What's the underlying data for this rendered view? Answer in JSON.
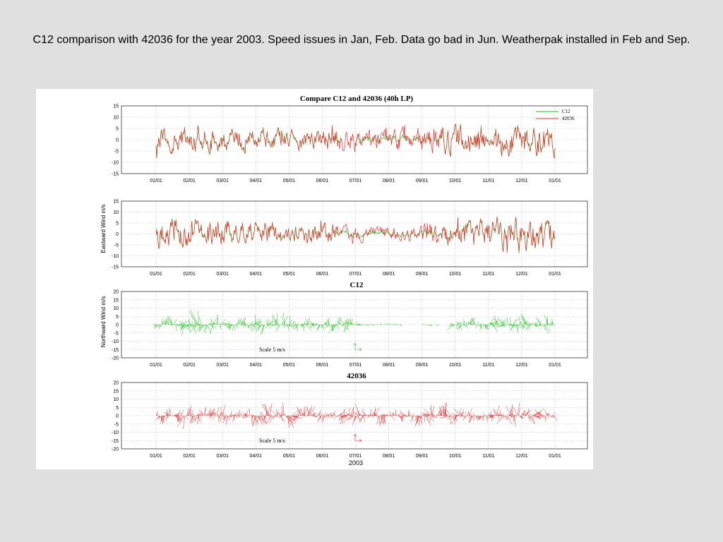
{
  "slide": {
    "caption": "C12 comparison with 42036 for the year 2003. Speed issues in Jan, Feb. Data go bad in Jun. Weatherpak installed in Feb and Sep."
  },
  "colors": {
    "c12": "#22c422",
    "buoy": "#e83030",
    "grid": "#bbbbbb",
    "slide_bg": "#e0e0e0"
  },
  "chart_data": [
    {
      "type": "line",
      "title": "Compare C12 and 42036 (40h LP)",
      "ylabel": "Eastward Wind m/s",
      "xlabel": "",
      "ylim": [
        -15,
        15
      ],
      "yticks": [
        "15",
        "10",
        "5",
        "0",
        "-5",
        "-10",
        "-15"
      ],
      "xticks": [
        "01/01",
        "02/01",
        "03/01",
        "04/01",
        "05/01",
        "06/01",
        "07/01",
        "08/01",
        "09/01",
        "10/01",
        "11/01",
        "12/01",
        "01/01"
      ],
      "grid": true,
      "legend_position": "top-right",
      "series": [
        {
          "name": "C12",
          "gap_months": [
            [
              5.6,
              6.0
            ],
            [
              8.3,
              8.4
            ]
          ]
        },
        {
          "name": "42036"
        }
      ],
      "amplitude_by_month": [
        5,
        5,
        5,
        4,
        4,
        5,
        4,
        5,
        6,
        6,
        7,
        7,
        6
      ]
    },
    {
      "type": "line",
      "title": "",
      "ylabel": "Northward Wind m/s",
      "xlabel": "",
      "ylim": [
        -15,
        15
      ],
      "yticks": [
        "15",
        "10",
        "5",
        "0",
        "-5",
        "-10",
        "-15"
      ],
      "xticks": [
        "01/01",
        "02/01",
        "03/01",
        "04/01",
        "05/01",
        "06/01",
        "07/01",
        "08/01",
        "09/01",
        "10/01",
        "11/01",
        "12/01",
        "01/01"
      ],
      "grid": true,
      "series": [
        {
          "name": "C12"
        },
        {
          "name": "42036"
        }
      ],
      "amplitude_by_month": [
        6,
        6,
        5,
        5,
        4,
        4,
        3,
        3,
        5,
        6,
        7,
        7,
        6
      ]
    },
    {
      "type": "quiver",
      "title": "C12",
      "ylabel": "",
      "xlabel": "",
      "ylim": [
        -20,
        20
      ],
      "yticks": [
        "20",
        "15",
        "10",
        "5",
        "0",
        "-5",
        "-10",
        "-15",
        "-20"
      ],
      "xticks": [
        "01/01",
        "02/01",
        "03/01",
        "04/01",
        "05/01",
        "06/01",
        "07/01",
        "08/01",
        "09/01",
        "10/01",
        "11/01",
        "12/01",
        "01/01"
      ],
      "grid": true,
      "scale_label": "Scale 5 m/s",
      "data_gaps_months": [
        [
          7.4,
          8.0
        ],
        [
          8.3,
          8.4
        ],
        [
          8.5,
          8.9
        ]
      ]
    },
    {
      "type": "quiver",
      "title": "42036",
      "ylabel": "",
      "xlabel": "2003",
      "ylim": [
        -20,
        20
      ],
      "yticks": [
        "20",
        "15",
        "10",
        "5",
        "0",
        "-5",
        "-10",
        "-15",
        "-20"
      ],
      "xticks": [
        "01/01",
        "02/01",
        "03/01",
        "04/01",
        "05/01",
        "06/01",
        "07/01",
        "08/01",
        "09/01",
        "10/01",
        "11/01",
        "12/01",
        "01/01"
      ],
      "grid": true,
      "scale_label": "Scale 5 m/s"
    }
  ]
}
